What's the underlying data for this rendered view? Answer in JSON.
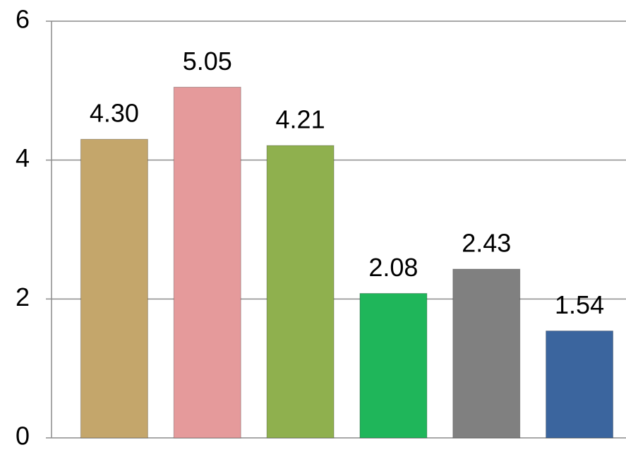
{
  "chart_data": {
    "type": "bar",
    "categories": [
      null,
      null,
      null,
      null,
      null,
      null
    ],
    "values": [
      4.3,
      5.05,
      4.21,
      2.08,
      2.43,
      1.54
    ],
    "value_labels": [
      "4.30",
      "5.05",
      "4.21",
      "2.08",
      "2.43",
      "1.54"
    ],
    "colors": [
      "#c4a66b",
      "#e59a9b",
      "#8fb04e",
      "#1fb65a",
      "#808080",
      "#3b659e"
    ],
    "ylim": [
      0,
      6
    ],
    "yticks": [
      0,
      2,
      4,
      6
    ],
    "grid": true
  }
}
